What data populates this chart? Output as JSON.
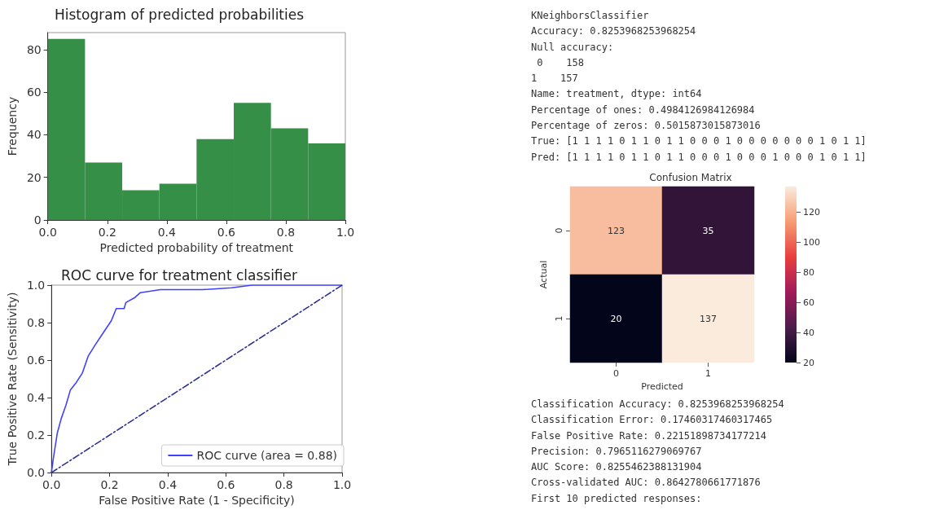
{
  "chart_data": [
    {
      "type": "histogram",
      "title": "Histogram of predicted probabilities",
      "xlabel": "Predicted probability of treatment",
      "ylabel": "Frequency",
      "bins": [
        0,
        0.125,
        0.25,
        0.375,
        0.5,
        0.625,
        0.75,
        0.875,
        1
      ],
      "values": [
        85,
        27,
        14,
        17,
        38,
        55,
        43,
        36
      ],
      "color": "#368f47",
      "xlim": [
        0,
        1
      ],
      "ylim": [
        0,
        88
      ],
      "xticks": [
        {
          "value": 0,
          "label": "0.0"
        },
        {
          "value": 0.2,
          "label": "0.2"
        },
        {
          "value": 0.4,
          "label": "0.4"
        },
        {
          "value": 0.6,
          "label": "0.6"
        },
        {
          "value": 0.8,
          "label": "0.8"
        },
        {
          "value": 1,
          "label": "1.0"
        }
      ],
      "yticks": [
        0,
        20,
        40,
        60,
        80
      ]
    },
    {
      "type": "line",
      "title": "ROC curve for treatment classifier",
      "xlabel": "False Positive Rate (1 - Specificity)",
      "ylabel": "True Positive Rate (Sensitivity)",
      "legend": "bottom right",
      "xlim": [
        0,
        1
      ],
      "ylim": [
        0,
        1
      ],
      "xticks": [
        {
          "value": 0,
          "label": "0.0"
        },
        {
          "value": 0.2,
          "label": "0.2"
        },
        {
          "value": 0.4,
          "label": "0.4"
        },
        {
          "value": 0.6,
          "label": "0.6"
        },
        {
          "value": 0.8,
          "label": "0.8"
        },
        {
          "value": 1,
          "label": "1.0"
        }
      ],
      "yticks": [
        {
          "value": 0,
          "label": "0.0"
        },
        {
          "value": 0.2,
          "label": "0.2"
        },
        {
          "value": 0.4,
          "label": "0.4"
        },
        {
          "value": 0.6,
          "label": "0.6"
        },
        {
          "value": 0.8,
          "label": "0.8"
        },
        {
          "value": 1,
          "label": "1.0"
        }
      ],
      "series": [
        {
          "name": "ROC curve (area = 0.88)",
          "color": "#4040ff",
          "line_style": "solid",
          "x": [
            0,
            0.006,
            0.02,
            0.034,
            0.05,
            0.065,
            0.085,
            0.106,
            0.126,
            0.15,
            0.18,
            0.206,
            0.223,
            0.25,
            0.256,
            0.288,
            0.306,
            0.375,
            0.52,
            0.62,
            0.69,
            1
          ],
          "values": [
            0,
            0.07,
            0.21,
            0.29,
            0.36,
            0.44,
            0.48,
            0.53,
            0.62,
            0.68,
            0.75,
            0.81,
            0.875,
            0.875,
            0.907,
            0.935,
            0.96,
            0.976,
            0.976,
            0.986,
            1,
            1
          ]
        },
        {
          "color": "#2e3192",
          "line_style": "dashed",
          "x": [
            0,
            1
          ],
          "values": [
            0,
            1
          ]
        }
      ]
    },
    {
      "type": "other",
      "annotations": [
        "KNeighborsClassifier",
        "Accuracy: 0.8253968253968254",
        "Null accuracy:",
        " 0    158",
        "1    157",
        "Name: treatment, dtype: int64",
        "Percentage of ones: 0.4984126984126984",
        "Percentage of zeros: 0.5015873015873016",
        "True: [1 1 1 1 0 1 1 0 1 1 0 0 0 1 0 0 0 0 0 0 0 1 0 1 1]",
        "Pred: [1 1 1 1 0 1 1 0 1 1 0 0 0 1 0 0 0 1 0 0 0 1 0 1 1]"
      ]
    },
    {
      "type": "heatmap",
      "title": "Confusion Matrix",
      "xlabel": "Predicted",
      "ylabel": "Actual",
      "categories": [
        "0",
        "1"
      ],
      "y_categories": [
        "0",
        "1"
      ],
      "cells": [
        [
          123,
          35
        ],
        [
          20,
          137
        ]
      ],
      "data_labels": true,
      "clim": [
        20,
        137
      ],
      "cticks": [
        20,
        40,
        60,
        80,
        100,
        120
      ]
    },
    {
      "type": "other",
      "annotations": [
        "Classification Accuracy: 0.8253968253968254",
        "Classification Error: 0.17460317460317465",
        "False Positive Rate: 0.22151898734177214",
        "Precision: 0.7965116279069767",
        "AUC Score: 0.8255462388131904",
        "Cross-validated AUC: 0.8642780661771876",
        "First 10 predicted responses:"
      ]
    }
  ]
}
